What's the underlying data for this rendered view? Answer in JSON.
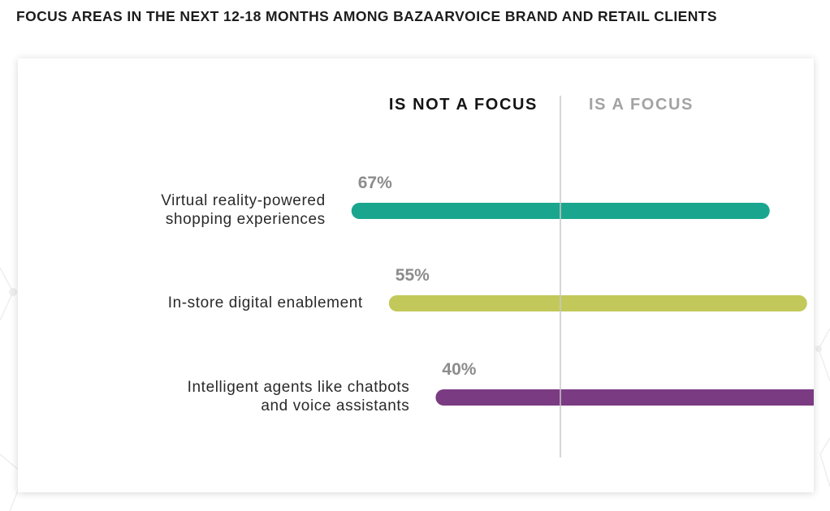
{
  "title": "FOCUS AREAS IN THE NEXT 12-18 MONTHS AMONG BAZAARVOICE BRAND AND RETAIL CLIENTS",
  "chart_data": {
    "type": "bar",
    "orientation": "horizontal",
    "title": "FOCUS AREAS IN THE NEXT 12-18 MONTHS AMONG BAZAARVOICE BRAND AND RETAIL CLIENTS",
    "legend": {
      "left": "IS NOT A FOCUS",
      "right": "IS A FOCUS"
    },
    "categories": [
      "Virtual reality-powered shopping experiences",
      "In-store digital enablement",
      "Intelligent agents like chatbots and voice assistants"
    ],
    "category_lines": [
      [
        "Virtual reality-powered",
        "shopping experiences"
      ],
      [
        "In-store digital enablement"
      ],
      [
        "Intelligent agents like chatbots",
        "and voice assistants"
      ]
    ],
    "series": [
      {
        "name": "Is not a focus",
        "values": [
          67,
          55,
          40
        ]
      }
    ],
    "labels": [
      "67%",
      "55%",
      "40%"
    ],
    "colors": [
      "#1aa68e",
      "#c2c95a",
      "#7b3b82"
    ],
    "divider_at_percent": 0,
    "xlim": [
      0,
      100
    ]
  }
}
